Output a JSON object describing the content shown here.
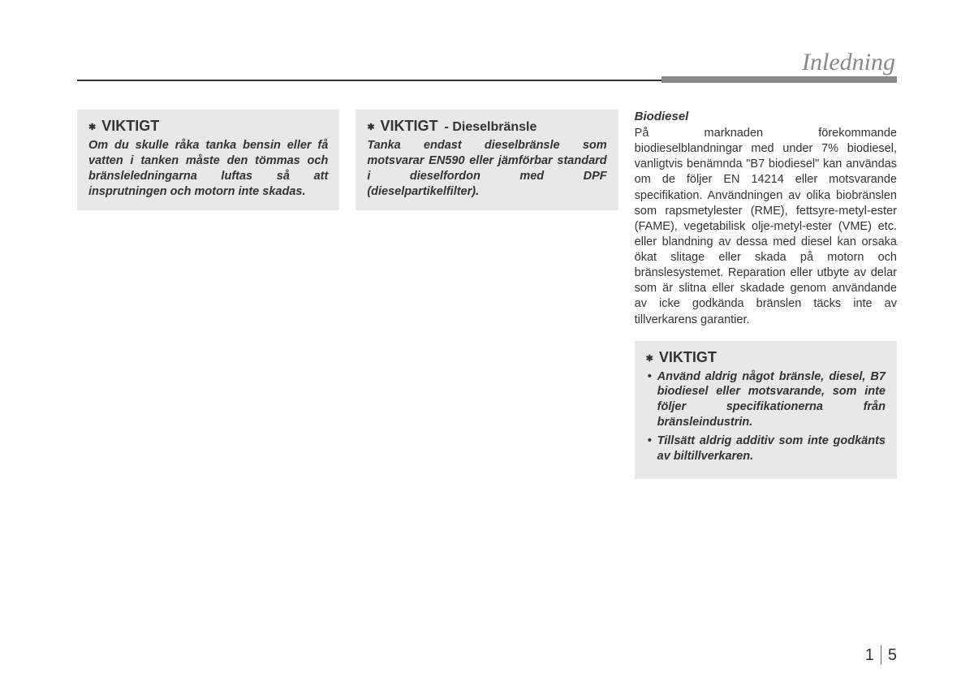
{
  "header": {
    "title": "Inledning"
  },
  "column1": {
    "notice1": {
      "heading": "VIKTIGT",
      "body": "Om du skulle råka tanka bensin eller få vatten i tanken måste den tömmas och bränsleledningarna luftas så att insprutningen och motorn inte skadas."
    }
  },
  "column2": {
    "notice1": {
      "heading": "VIKTIGT",
      "subheading": "- Dieselbränsle",
      "body": "Tanka endast dieselbränsle som motsvarar EN590 eller jämförbar standard i dieselfordon med DPF (dieselpartikelfilter)."
    }
  },
  "column3": {
    "section_heading": "Biodiesel",
    "body_text": "På marknaden förekommande biodieselblandningar med under 7% biodiesel, vanligtvis benämnda \"B7 biodiesel\" kan användas om de följer EN 14214 eller motsvarande specifikation. Användningen av olika biobränslen som rapsmetylester (RME), fettsyre-metyl-ester (FAME), vegetabilisk olje-metyl-ester (VME) etc. eller blandning av dessa med diesel kan orsaka ökat slitage eller skada på motorn och bränslesystemet. Reparation eller utbyte av delar som är slitna eller skadade genom användande av icke godkända bränslen täcks inte av tillverkarens garantier.",
    "notice1": {
      "heading": "VIKTIGT",
      "bullet1": "Använd aldrig något bränsle, diesel, B7 biodiesel eller motsvarande, som inte följer specifikationerna från bränsleindustrin.",
      "bullet2": "Tillsätt aldrig additiv som inte godkänts av biltillverkaren."
    }
  },
  "footer": {
    "chapter": "1",
    "page": "5"
  },
  "styles": {
    "notice_bg": "#e8e8e8",
    "text_color": "#333333",
    "header_color": "#888888"
  }
}
